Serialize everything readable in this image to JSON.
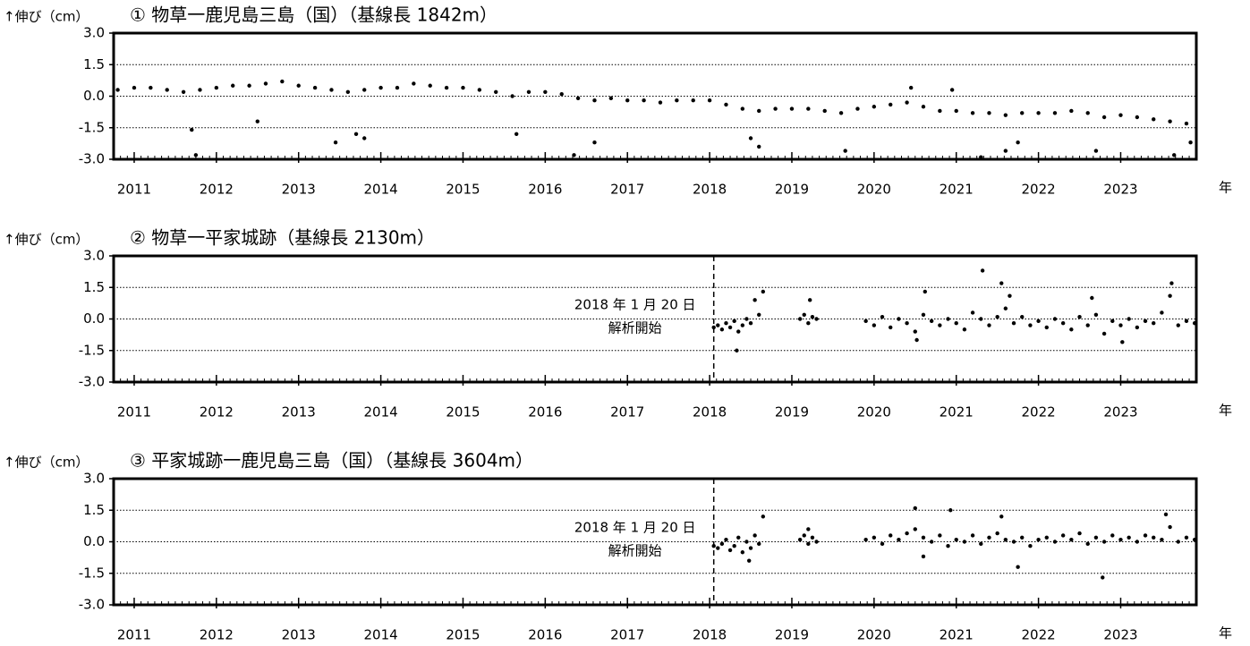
{
  "chart_data": [
    {
      "type": "scatter",
      "title": "①  物草一鹿児島三島（国）（基線長 1842m）",
      "y_label": "↑伸び（cm）",
      "x_label": "年",
      "color": "#000000",
      "grid": true,
      "xlim": [
        2010.75,
        2023.92
      ],
      "xticks": [
        2011,
        2012,
        2013,
        2014,
        2015,
        2016,
        2017,
        2018,
        2019,
        2020,
        2021,
        2022,
        2023
      ],
      "ylim": [
        -3,
        3
      ],
      "yticks": [
        {
          "value": 3,
          "label": "3.0"
        },
        {
          "value": 1.5,
          "label": "1.5"
        },
        {
          "value": 0,
          "label": "0.0"
        },
        {
          "value": -1.5,
          "label": "-1.5"
        },
        {
          "value": -3,
          "label": "-3.0"
        }
      ],
      "x": [
        2010.8,
        2011.0,
        2011.2,
        2011.4,
        2011.6,
        2011.8,
        2012.0,
        2012.2,
        2012.4,
        2012.6,
        2012.8,
        2013.0,
        2013.2,
        2013.4,
        2013.6,
        2013.8,
        2014.0,
        2014.2,
        2014.4,
        2014.6,
        2014.8,
        2015.0,
        2015.2,
        2015.4,
        2015.6,
        2015.8,
        2016.0,
        2016.2,
        2016.4,
        2016.6,
        2016.8,
        2017.0,
        2017.2,
        2017.4,
        2017.6,
        2017.8,
        2018.0,
        2018.2,
        2018.4,
        2018.6,
        2018.8,
        2019.0,
        2019.2,
        2019.4,
        2019.6,
        2019.8,
        2020.0,
        2020.2,
        2020.4,
        2020.6,
        2020.8,
        2021.0,
        2021.2,
        2021.4,
        2021.6,
        2021.8,
        2022.0,
        2022.2,
        2022.4,
        2022.6,
        2022.8,
        2023.0,
        2023.2,
        2023.4,
        2023.6,
        2023.8,
        2011.7,
        2011.75,
        2012.5,
        2013.45,
        2013.7,
        2013.8,
        2015.65,
        2016.35,
        2016.6,
        2018.5,
        2018.6,
        2019.65,
        2020.45,
        2020.95,
        2021.3,
        2021.6,
        2021.75,
        2022.7,
        2023.65,
        2023.85
      ],
      "values": [
        0.3,
        0.4,
        0.4,
        0.3,
        0.2,
        0.3,
        0.4,
        0.5,
        0.5,
        0.6,
        0.7,
        0.5,
        0.4,
        0.3,
        0.2,
        0.3,
        0.4,
        0.4,
        0.6,
        0.5,
        0.4,
        0.4,
        0.3,
        0.2,
        0.0,
        0.2,
        0.2,
        0.1,
        -0.1,
        -0.2,
        -0.1,
        -0.2,
        -0.2,
        -0.3,
        -0.2,
        -0.2,
        -0.2,
        -0.4,
        -0.6,
        -0.7,
        -0.6,
        -0.6,
        -0.6,
        -0.7,
        -0.8,
        -0.6,
        -0.5,
        -0.4,
        -0.3,
        -0.5,
        -0.7,
        -0.7,
        -0.8,
        -0.8,
        -0.9,
        -0.8,
        -0.8,
        -0.8,
        -0.7,
        -0.8,
        -1.0,
        -0.9,
        -1.0,
        -1.1,
        -1.2,
        -1.3,
        -1.6,
        -2.8,
        -1.2,
        -2.2,
        -1.8,
        -2.0,
        -1.8,
        -2.8,
        -2.2,
        -2.0,
        -2.4,
        -2.6,
        0.4,
        0.3,
        -2.9,
        -2.6,
        -2.2,
        -2.6,
        -2.8,
        -2.2
      ]
    },
    {
      "type": "scatter",
      "title": "②  物草一平家城跡（基線長 2130m）",
      "y_label": "↑伸び（cm）",
      "x_label": "年",
      "color": "#000000",
      "grid": true,
      "annotation": {
        "text": [
          "2018 年 1 月 20 日",
          "解析開始"
        ],
        "x": 2018.05
      },
      "xlim": [
        2010.75,
        2023.92
      ],
      "xticks": [
        2011,
        2012,
        2013,
        2014,
        2015,
        2016,
        2017,
        2018,
        2019,
        2020,
        2021,
        2022,
        2023
      ],
      "ylim": [
        -3,
        3
      ],
      "yticks": [
        {
          "value": 3,
          "label": "3.0"
        },
        {
          "value": 1.5,
          "label": "1.5"
        },
        {
          "value": 0,
          "label": "0.0"
        },
        {
          "value": -1.5,
          "label": "-1.5"
        },
        {
          "value": -3,
          "label": "-3.0"
        }
      ],
      "x": [
        2018.05,
        2018.1,
        2018.15,
        2018.2,
        2018.25,
        2018.3,
        2018.35,
        2018.4,
        2018.45,
        2018.5,
        2018.55,
        2018.6,
        2018.65,
        2018.33,
        2019.1,
        2019.15,
        2019.2,
        2019.25,
        2019.3,
        2019.22,
        2019.9,
        2020.0,
        2020.1,
        2020.2,
        2020.3,
        2020.4,
        2020.5,
        2020.6,
        2020.7,
        2020.8,
        2020.9,
        2021.0,
        2021.1,
        2021.2,
        2021.3,
        2021.4,
        2021.5,
        2021.6,
        2021.7,
        2021.8,
        2021.9,
        2022.0,
        2022.1,
        2022.2,
        2022.3,
        2022.4,
        2022.5,
        2022.6,
        2022.7,
        2022.8,
        2022.9,
        2023.0,
        2023.1,
        2023.2,
        2023.3,
        2023.4,
        2023.5,
        2023.6,
        2023.7,
        2023.8,
        2023.9,
        2020.62,
        2021.32,
        2021.55,
        2021.65,
        2022.65,
        2023.62,
        2020.52,
        2023.02
      ],
      "values": [
        -0.4,
        -0.3,
        -0.5,
        -0.2,
        -0.4,
        -0.1,
        -0.6,
        -0.3,
        0.0,
        -0.2,
        0.9,
        0.2,
        1.3,
        -1.5,
        0.0,
        0.2,
        -0.2,
        0.1,
        0.0,
        0.9,
        -0.1,
        -0.3,
        0.1,
        -0.4,
        0.0,
        -0.2,
        -0.6,
        0.2,
        -0.1,
        -0.3,
        0.0,
        -0.2,
        -0.5,
        0.3,
        0.0,
        -0.3,
        0.1,
        0.5,
        -0.2,
        0.1,
        -0.3,
        -0.1,
        -0.4,
        0.0,
        -0.2,
        -0.5,
        0.1,
        -0.3,
        0.2,
        -0.7,
        -0.1,
        -0.3,
        0.0,
        -0.4,
        -0.1,
        -0.2,
        0.3,
        1.1,
        -0.3,
        -0.1,
        -0.2,
        1.3,
        2.3,
        1.7,
        1.1,
        1.0,
        1.7,
        -1.0,
        -1.1
      ]
    },
    {
      "type": "scatter",
      "title": "③  平家城跡一鹿児島三島（国）（基線長 3604m）",
      "y_label": "↑伸び（cm）",
      "x_label": "年",
      "color": "#000000",
      "grid": true,
      "annotation": {
        "text": [
          "2018 年 1 月 20 日",
          "解析開始"
        ],
        "x": 2018.05
      },
      "xlim": [
        2010.75,
        2023.92
      ],
      "xticks": [
        2011,
        2012,
        2013,
        2014,
        2015,
        2016,
        2017,
        2018,
        2019,
        2020,
        2021,
        2022,
        2023
      ],
      "ylim": [
        -3,
        3
      ],
      "yticks": [
        {
          "value": 3,
          "label": "3.0"
        },
        {
          "value": 1.5,
          "label": "1.5"
        },
        {
          "value": 0,
          "label": "0.0"
        },
        {
          "value": -1.5,
          "label": "-1.5"
        },
        {
          "value": -3,
          "label": "-3.0"
        }
      ],
      "x": [
        2018.05,
        2018.1,
        2018.15,
        2018.2,
        2018.25,
        2018.3,
        2018.35,
        2018.4,
        2018.45,
        2018.5,
        2018.55,
        2018.6,
        2018.65,
        2018.48,
        2019.1,
        2019.15,
        2019.2,
        2019.25,
        2019.3,
        2019.2,
        2019.9,
        2020.0,
        2020.1,
        2020.2,
        2020.3,
        2020.4,
        2020.5,
        2020.6,
        2020.7,
        2020.8,
        2020.9,
        2021.0,
        2021.1,
        2021.2,
        2021.3,
        2021.4,
        2021.5,
        2021.6,
        2021.7,
        2021.8,
        2021.9,
        2022.0,
        2022.1,
        2022.2,
        2022.3,
        2022.4,
        2022.5,
        2022.6,
        2022.7,
        2022.8,
        2022.9,
        2023.0,
        2023.1,
        2023.2,
        2023.3,
        2023.4,
        2023.5,
        2023.6,
        2023.7,
        2023.8,
        2023.9,
        2020.5,
        2020.93,
        2021.55,
        2021.75,
        2022.78,
        2023.55,
        2020.6
      ],
      "values": [
        -0.2,
        -0.3,
        -0.1,
        0.1,
        -0.4,
        -0.2,
        0.2,
        -0.5,
        0.0,
        -0.3,
        0.3,
        -0.1,
        1.2,
        -0.9,
        0.1,
        0.3,
        -0.1,
        0.2,
        0.0,
        0.6,
        0.1,
        0.2,
        -0.1,
        0.3,
        0.1,
        0.4,
        0.6,
        0.2,
        0.0,
        0.3,
        -0.2,
        0.1,
        0.0,
        0.3,
        -0.1,
        0.2,
        0.4,
        0.1,
        0.0,
        0.2,
        -0.2,
        0.1,
        0.2,
        0.0,
        0.3,
        0.1,
        0.4,
        -0.1,
        0.2,
        0.0,
        0.3,
        0.1,
        0.2,
        0.0,
        0.3,
        0.2,
        0.1,
        0.7,
        0.0,
        0.2,
        0.1,
        1.6,
        1.5,
        1.2,
        -1.2,
        -1.7,
        1.3,
        -0.7
      ]
    }
  ]
}
